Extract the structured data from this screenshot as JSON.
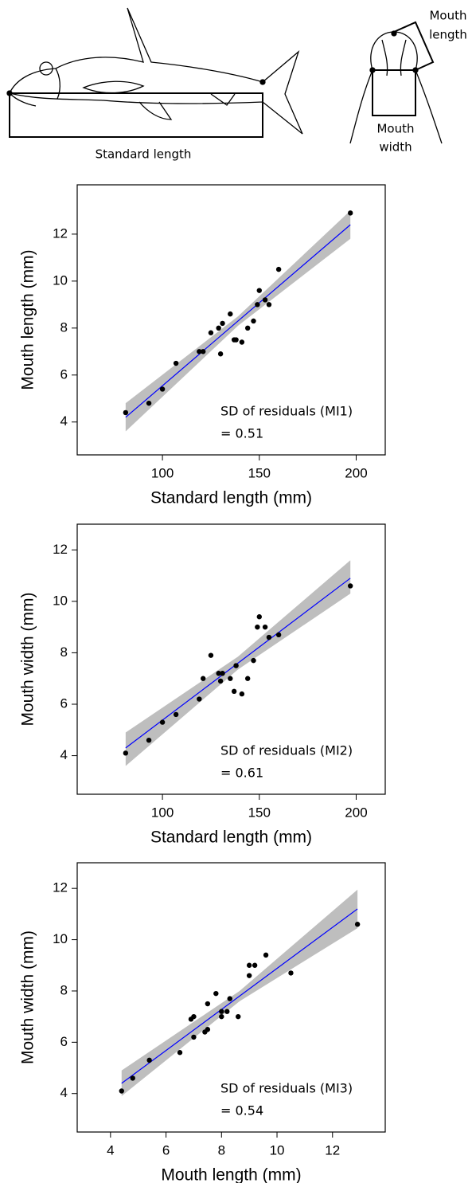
{
  "diagram": {
    "standard_length": "Standard length",
    "mouth_length": [
      "Mouth",
      "length"
    ],
    "mouth_width": [
      "Mouth",
      "width"
    ]
  },
  "chart_data": [
    {
      "type": "scatter",
      "x_label": "Standard length (mm)",
      "y_label": "Mouth length (mm)",
      "annotation": [
        "SD of residuals (MI1)",
        "= 0.51"
      ],
      "x": [
        81,
        93,
        100,
        107,
        119,
        121,
        125,
        129,
        130,
        131,
        135,
        137,
        138,
        141,
        144,
        147,
        149,
        150,
        153,
        155,
        160,
        197
      ],
      "values": [
        4.4,
        4.8,
        5.4,
        6.5,
        7.0,
        7.0,
        7.8,
        8.0,
        6.9,
        8.2,
        8.6,
        7.5,
        7.5,
        7.4,
        8.0,
        8.3,
        9.0,
        9.6,
        9.2,
        9.0,
        10.5,
        12.9
      ],
      "color": "#000000",
      "fit": {
        "x": [
          81,
          139,
          197
        ],
        "y": [
          4.2,
          8.3,
          12.4
        ],
        "lower": [
          3.6,
          8.1,
          11.8
        ],
        "upper": [
          4.8,
          8.5,
          13.0
        ],
        "color": "#0000ff",
        "band_color": "#bebebe"
      },
      "xlim": [
        56,
        215
      ],
      "ylim": [
        2.6,
        14.1
      ],
      "xticks": [
        100,
        150,
        200
      ],
      "yticks": [
        4,
        6,
        8,
        10,
        12
      ]
    },
    {
      "type": "scatter",
      "x_label": "Standard length (mm)",
      "y_label": "Mouth width (mm)",
      "annotation": [
        "SD of residuals (MI2)",
        "= 0.61"
      ],
      "x": [
        81,
        93,
        100,
        107,
        119,
        121,
        125,
        129,
        130,
        131,
        135,
        137,
        138,
        141,
        144,
        147,
        149,
        150,
        153,
        155,
        160,
        197
      ],
      "values": [
        4.1,
        4.6,
        5.3,
        5.6,
        6.2,
        7.0,
        7.9,
        7.2,
        6.9,
        7.2,
        7.0,
        6.5,
        7.5,
        6.4,
        7.0,
        7.7,
        9.0,
        9.4,
        9.0,
        8.6,
        8.7,
        10.6
      ],
      "color": "#000000",
      "fit": {
        "x": [
          81,
          139,
          197
        ],
        "y": [
          4.3,
          7.6,
          10.9
        ],
        "lower": [
          3.6,
          7.35,
          10.3
        ],
        "upper": [
          4.9,
          7.85,
          11.6
        ],
        "color": "#0000ff",
        "band_color": "#bebebe"
      },
      "xlim": [
        56,
        215
      ],
      "ylim": [
        2.5,
        13.0
      ],
      "xticks": [
        100,
        150,
        200
      ],
      "yticks": [
        4,
        6,
        8,
        10,
        12
      ]
    },
    {
      "type": "scatter",
      "x_label": "Mouth length (mm)",
      "y_label": "Mouth width (mm)",
      "annotation": [
        "SD of residuals (MI3)",
        "= 0.54"
      ],
      "x": [
        4.4,
        4.8,
        5.4,
        6.5,
        7.0,
        7.0,
        7.8,
        8.0,
        6.9,
        8.2,
        8.6,
        7.5,
        7.5,
        7.4,
        8.0,
        8.3,
        9.0,
        9.6,
        9.2,
        9.0,
        10.5,
        12.9
      ],
      "values": [
        4.1,
        4.6,
        5.3,
        5.6,
        6.2,
        7.0,
        7.9,
        7.2,
        6.9,
        7.2,
        7.0,
        6.5,
        7.5,
        6.4,
        7.0,
        7.7,
        9.0,
        9.4,
        9.0,
        8.6,
        8.7,
        10.6
      ],
      "color": "#000000",
      "fit": {
        "x": [
          4.4,
          8.65,
          12.9
        ],
        "y": [
          4.4,
          7.8,
          11.2
        ],
        "lower": [
          3.9,
          7.6,
          10.45
        ],
        "upper": [
          4.9,
          8.0,
          11.95
        ],
        "color": "#0000ff",
        "band_color": "#bebebe"
      },
      "xlim": [
        2.8,
        13.9
      ],
      "ylim": [
        2.5,
        13.0
      ],
      "xticks": [
        4,
        6,
        8,
        10,
        12
      ],
      "yticks": [
        4,
        6,
        8,
        10,
        12
      ]
    }
  ]
}
